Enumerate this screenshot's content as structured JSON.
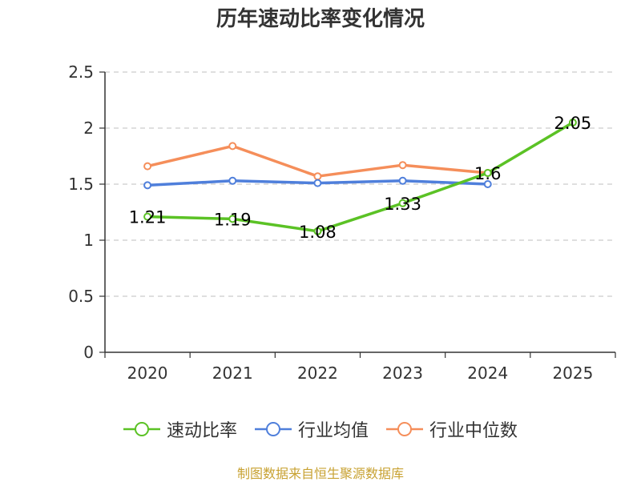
{
  "chart_data": {
    "type": "line",
    "title": "历年速动比率变化情况",
    "categories": [
      "2020",
      "2021",
      "2022",
      "2023",
      "2024",
      "2025"
    ],
    "ylim": [
      0,
      2.5
    ],
    "yticks": [
      "0",
      "0.5",
      "1",
      "1.5",
      "2",
      "2.5"
    ],
    "ytick_values": [
      0,
      0.5,
      1,
      1.5,
      2,
      2.5
    ],
    "grid": true,
    "legend_position": "bottom",
    "series": [
      {
        "name": "速动比率",
        "color": "#5bc225",
        "values": [
          1.21,
          1.19,
          1.08,
          1.33,
          1.6,
          2.05
        ],
        "labels": [
          "1.21",
          "1.19",
          "1.08",
          "1.33",
          "1.6",
          "2.05"
        ]
      },
      {
        "name": "行业均值",
        "color": "#4f7fdb",
        "values": [
          1.49,
          1.53,
          1.51,
          1.53,
          1.5,
          null
        ]
      },
      {
        "name": "行业中位数",
        "color": "#f58e5a",
        "values": [
          1.66,
          1.84,
          1.57,
          1.67,
          1.6,
          null
        ]
      }
    ]
  },
  "footer": {
    "source": "制图数据来自恒生聚源数据库"
  }
}
